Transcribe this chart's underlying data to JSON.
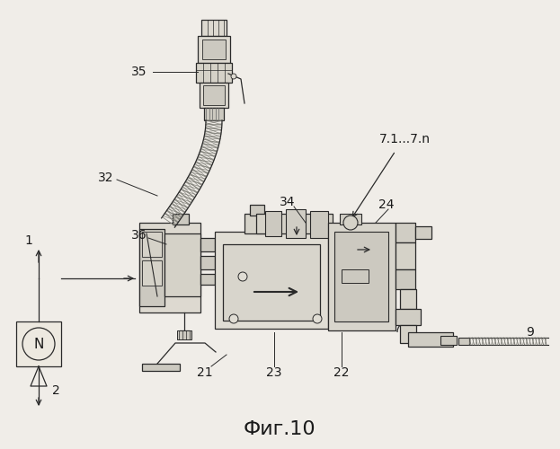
{
  "figure_title": "Фиг.10",
  "bg_color": "#f0ede8",
  "line_color": "#2a2a2a",
  "label_color": "#1a1a1a",
  "title_fontsize": 16
}
